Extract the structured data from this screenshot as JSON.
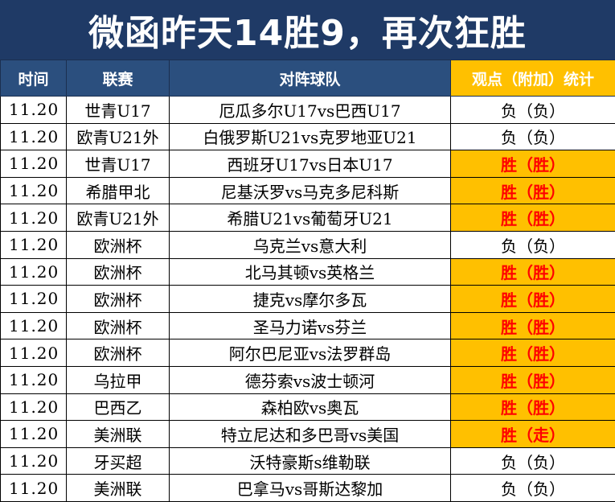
{
  "title": "微函昨天14胜9，再次狂胜",
  "headers": {
    "time": "时间",
    "league": "联赛",
    "match": "对阵球队",
    "stat": "观点（附加）统计"
  },
  "rows": [
    {
      "time": "11.20",
      "league": "世青U17",
      "match": "厄瓜多尔U17vs巴西U17",
      "result": "负（负）",
      "status": "loss"
    },
    {
      "time": "11.20",
      "league": "欧青U21外",
      "match": "白俄罗斯U21vs克罗地亚U21",
      "result": "负（负）",
      "status": "loss"
    },
    {
      "time": "11.20",
      "league": "世青U17",
      "match": "西班牙U17vs日本U17",
      "result": "胜（胜）",
      "status": "win"
    },
    {
      "time": "11.20",
      "league": "希腊甲北",
      "match": "尼基沃罗vs马克多尼科斯",
      "result": "胜（胜）",
      "status": "win"
    },
    {
      "time": "11.20",
      "league": "欧青U21外",
      "match": "希腊U21vs葡萄牙U21",
      "result": "胜（胜）",
      "status": "win"
    },
    {
      "time": "11.20",
      "league": "欧洲杯",
      "match": "乌克兰vs意大利",
      "result": "负（负）",
      "status": "loss"
    },
    {
      "time": "11.20",
      "league": "欧洲杯",
      "match": "北马其顿vs英格兰",
      "result": "胜（胜）",
      "status": "win"
    },
    {
      "time": "11.20",
      "league": "欧洲杯",
      "match": "捷克vs摩尔多瓦",
      "result": "胜（胜）",
      "status": "win"
    },
    {
      "time": "11.20",
      "league": "欧洲杯",
      "match": "圣马力诺vs芬兰",
      "result": "胜（胜）",
      "status": "win"
    },
    {
      "time": "11.20",
      "league": "欧洲杯",
      "match": "阿尔巴尼亚vs法罗群岛",
      "result": "胜（胜）",
      "status": "win"
    },
    {
      "time": "11.20",
      "league": "乌拉甲",
      "match": "德芬索vs波士顿河",
      "result": "胜（胜）",
      "status": "win"
    },
    {
      "time": "11.20",
      "league": "巴西乙",
      "match": "森柏欧vs奥瓦",
      "result": "胜（胜）",
      "status": "win"
    },
    {
      "time": "11.20",
      "league": "美洲联",
      "match": "特立尼达和多巴哥vs美国",
      "result": "胜（走）",
      "status": "win"
    },
    {
      "time": "11.20",
      "league": "牙买超",
      "match": "沃特豪斯s维勒联",
      "result": "负（负）",
      "status": "loss"
    },
    {
      "time": "11.20",
      "league": "美洲联",
      "match": "巴拿马vs哥斯达黎加",
      "result": "负（负）",
      "status": "loss"
    }
  ],
  "colors": {
    "title_bg": "#1f3a66",
    "header_bg": "#2b4f7e",
    "highlight_bg": "#ffc000",
    "win_text": "#ff0000",
    "loss_text": "#000000"
  }
}
